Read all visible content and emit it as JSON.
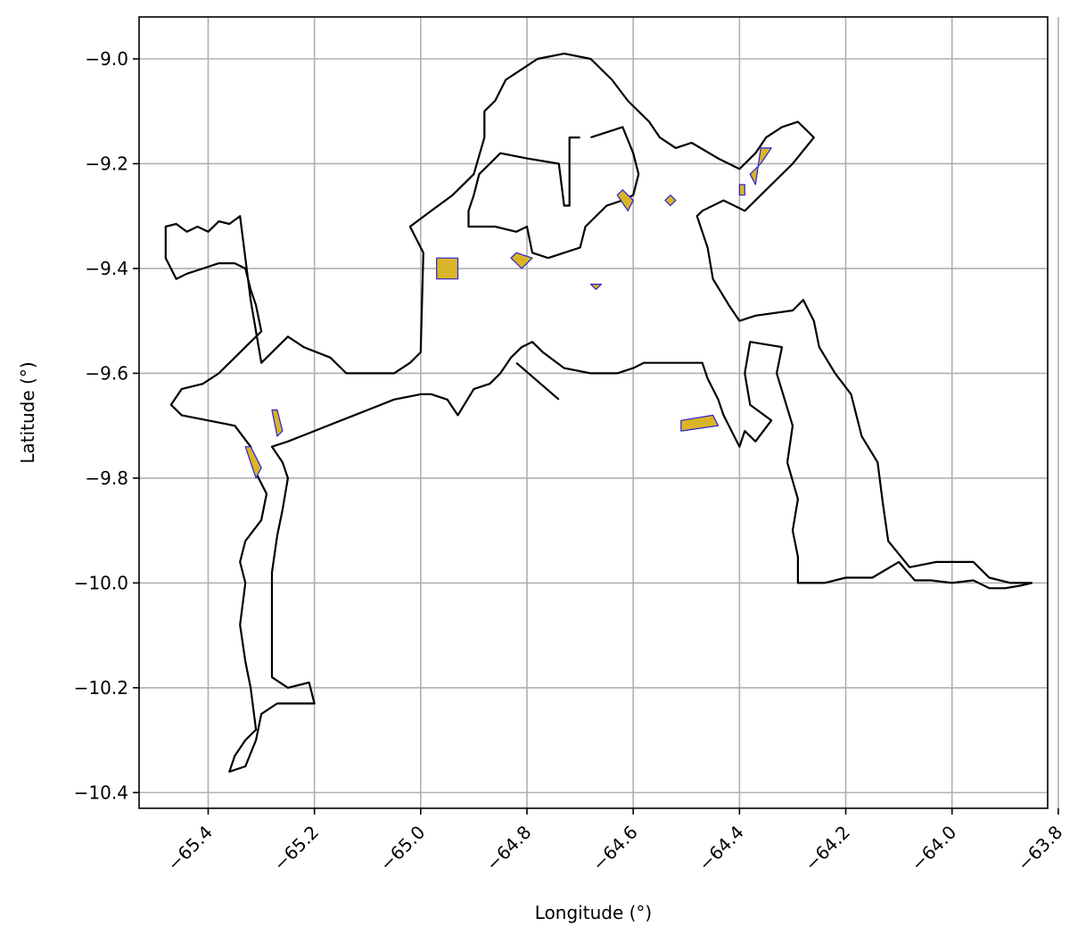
{
  "chart_data": {
    "type": "map",
    "xlabel": "Longitude (°)",
    "ylabel": "Latitude (°)",
    "xlim": [
      -65.53,
      -63.82
    ],
    "ylim": [
      -10.43,
      -8.92
    ],
    "xticks": [
      -65.4,
      -65.2,
      -65.0,
      -64.8,
      -64.6,
      -64.4,
      -64.2,
      -64.0,
      -63.8
    ],
    "xtick_labels": [
      "−65.4",
      "−65.2",
      "−65.0",
      "−64.8",
      "−64.6",
      "−64.4",
      "−64.2",
      "−64.0",
      "−63.8"
    ],
    "yticks": [
      -9.0,
      -9.2,
      -9.4,
      -9.6,
      -9.8,
      -10.0,
      -10.2,
      -10.4
    ],
    "ytick_labels": [
      "−9.0",
      "−9.2",
      "−9.4",
      "−9.6",
      "−9.8",
      "−10.0",
      "−10.2",
      "−10.4"
    ],
    "grid": true,
    "boundary_color": "#000000",
    "feature_fill": "#d9b526",
    "feature_edge": "#2a1fd6",
    "boundary": [
      [
        -65.48,
        -9.32
      ],
      [
        -65.46,
        -9.315
      ],
      [
        -65.44,
        -9.33
      ],
      [
        -65.42,
        -9.32
      ],
      [
        -65.4,
        -9.33
      ],
      [
        -65.38,
        -9.31
      ],
      [
        -65.36,
        -9.315
      ],
      [
        -65.34,
        -9.3
      ],
      [
        -65.32,
        -9.46
      ],
      [
        -65.3,
        -9.58
      ],
      [
        -65.25,
        -9.53
      ],
      [
        -65.22,
        -9.55
      ],
      [
        -65.17,
        -9.57
      ],
      [
        -65.14,
        -9.6
      ],
      [
        -65.1,
        -9.6
      ],
      [
        -65.05,
        -9.6
      ],
      [
        -65.02,
        -9.58
      ],
      [
        -65.0,
        -9.56
      ],
      [
        -64.995,
        -9.37
      ],
      [
        -65.02,
        -9.32
      ],
      [
        -64.98,
        -9.29
      ],
      [
        -64.94,
        -9.26
      ],
      [
        -64.9,
        -9.22
      ],
      [
        -64.88,
        -9.15
      ],
      [
        -64.88,
        -9.1
      ],
      [
        -64.86,
        -9.08
      ],
      [
        -64.84,
        -9.04
      ],
      [
        -64.81,
        -9.02
      ],
      [
        -64.78,
        -9.0
      ],
      [
        -64.73,
        -8.99
      ],
      [
        -64.68,
        -9.0
      ],
      [
        -64.64,
        -9.04
      ],
      [
        -64.61,
        -9.08
      ],
      [
        -64.57,
        -9.12
      ],
      [
        -64.55,
        -9.15
      ],
      [
        -64.52,
        -9.17
      ],
      [
        -64.49,
        -9.16
      ],
      [
        -64.44,
        -9.19
      ],
      [
        -64.4,
        -9.21
      ],
      [
        -64.37,
        -9.18
      ],
      [
        -64.35,
        -9.15
      ],
      [
        -64.32,
        -9.13
      ],
      [
        -64.29,
        -9.12
      ],
      [
        -64.26,
        -9.15
      ],
      [
        -64.3,
        -9.2
      ],
      [
        -64.33,
        -9.23
      ],
      [
        -64.36,
        -9.26
      ],
      [
        -64.38,
        -9.28
      ],
      [
        -64.39,
        -9.29
      ],
      [
        -64.43,
        -9.27
      ],
      [
        -64.47,
        -9.29
      ],
      [
        -64.48,
        -9.3
      ],
      [
        -64.46,
        -9.36
      ],
      [
        -64.45,
        -9.42
      ],
      [
        -64.42,
        -9.47
      ],
      [
        -64.4,
        -9.5
      ],
      [
        -64.37,
        -9.49
      ],
      [
        -64.3,
        -9.48
      ],
      [
        -64.28,
        -9.46
      ],
      [
        -64.26,
        -9.5
      ],
      [
        -64.25,
        -9.55
      ],
      [
        -64.22,
        -9.6
      ],
      [
        -64.19,
        -9.64
      ],
      [
        -64.17,
        -9.72
      ],
      [
        -64.14,
        -9.77
      ],
      [
        -64.13,
        -9.85
      ],
      [
        -64.12,
        -9.92
      ],
      [
        -64.08,
        -9.97
      ],
      [
        -64.03,
        -9.96
      ],
      [
        -63.96,
        -9.96
      ],
      [
        -63.93,
        -9.99
      ],
      [
        -63.89,
        -10.0
      ],
      [
        -63.85,
        -10.0
      ],
      [
        -63.87,
        -10.005
      ],
      [
        -63.9,
        -10.01
      ],
      [
        -63.93,
        -10.01
      ],
      [
        -63.96,
        -9.995
      ],
      [
        -64.0,
        -10.0
      ],
      [
        -64.04,
        -9.995
      ],
      [
        -64.07,
        -9.995
      ],
      [
        -64.1,
        -9.96
      ],
      [
        -64.15,
        -9.99
      ],
      [
        -64.2,
        -9.99
      ],
      [
        -64.24,
        -10.0
      ],
      [
        -64.29,
        -10.0
      ],
      [
        -64.29,
        -9.95
      ],
      [
        -64.3,
        -9.9
      ],
      [
        -64.29,
        -9.84
      ],
      [
        -64.31,
        -9.77
      ],
      [
        -64.3,
        -9.7
      ],
      [
        -64.33,
        -9.6
      ],
      [
        -64.32,
        -9.55
      ],
      [
        -64.38,
        -9.54
      ],
      [
        -64.39,
        -9.6
      ],
      [
        -64.38,
        -9.66
      ],
      [
        -64.34,
        -9.69
      ],
      [
        -64.37,
        -9.73
      ],
      [
        -64.39,
        -9.71
      ],
      [
        -64.4,
        -9.74
      ],
      [
        -64.43,
        -9.68
      ],
      [
        -64.44,
        -9.65
      ],
      [
        -64.46,
        -9.61
      ],
      [
        -64.47,
        -9.58
      ],
      [
        -64.5,
        -9.58
      ],
      [
        -64.55,
        -9.58
      ],
      [
        -64.58,
        -9.58
      ],
      [
        -64.6,
        -9.59
      ],
      [
        -64.63,
        -9.6
      ],
      [
        -64.68,
        -9.6
      ],
      [
        -64.73,
        -9.59
      ],
      [
        -64.77,
        -9.56
      ],
      [
        -64.79,
        -9.54
      ],
      [
        -64.81,
        -9.55
      ],
      [
        -64.83,
        -9.57
      ],
      [
        -64.85,
        -9.6
      ],
      [
        -64.87,
        -9.62
      ],
      [
        -64.9,
        -9.63
      ],
      [
        -64.93,
        -9.68
      ],
      [
        -64.95,
        -9.65
      ],
      [
        -64.98,
        -9.64
      ],
      [
        -65.0,
        -9.64
      ],
      [
        -65.05,
        -9.65
      ],
      [
        -65.1,
        -9.67
      ],
      [
        -65.15,
        -9.69
      ],
      [
        -65.2,
        -9.71
      ],
      [
        -65.25,
        -9.73
      ],
      [
        -65.28,
        -9.74
      ],
      [
        -65.26,
        -9.77
      ],
      [
        -65.25,
        -9.8
      ],
      [
        -65.26,
        -9.86
      ],
      [
        -65.27,
        -9.91
      ],
      [
        -65.28,
        -9.98
      ],
      [
        -65.28,
        -10.04
      ],
      [
        -65.28,
        -10.1
      ],
      [
        -65.28,
        -10.18
      ],
      [
        -65.25,
        -10.2
      ],
      [
        -65.21,
        -10.19
      ],
      [
        -65.2,
        -10.23
      ],
      [
        -65.27,
        -10.23
      ],
      [
        -65.3,
        -10.25
      ],
      [
        -65.31,
        -10.3
      ],
      [
        -65.33,
        -10.35
      ],
      [
        -65.36,
        -10.36
      ],
      [
        -65.35,
        -10.33
      ],
      [
        -65.33,
        -10.3
      ],
      [
        -65.31,
        -10.28
      ],
      [
        -65.32,
        -10.2
      ],
      [
        -65.33,
        -10.15
      ],
      [
        -65.34,
        -10.08
      ],
      [
        -65.33,
        -10.0
      ],
      [
        -65.34,
        -9.96
      ],
      [
        -65.33,
        -9.92
      ],
      [
        -65.3,
        -9.88
      ],
      [
        -65.29,
        -9.83
      ],
      [
        -65.31,
        -9.79
      ],
      [
        -65.32,
        -9.74
      ],
      [
        -65.35,
        -9.7
      ],
      [
        -65.4,
        -9.69
      ],
      [
        -65.45,
        -9.68
      ],
      [
        -65.47,
        -9.66
      ],
      [
        -65.45,
        -9.63
      ],
      [
        -65.41,
        -9.62
      ],
      [
        -65.38,
        -9.6
      ],
      [
        -65.35,
        -9.57
      ],
      [
        -65.32,
        -9.54
      ],
      [
        -65.3,
        -9.52
      ],
      [
        -65.31,
        -9.47
      ],
      [
        -65.32,
        -9.44
      ],
      [
        -65.33,
        -9.4
      ],
      [
        -65.35,
        -9.39
      ],
      [
        -65.38,
        -9.39
      ],
      [
        -65.41,
        -9.4
      ],
      [
        -65.44,
        -9.41
      ],
      [
        -65.46,
        -9.42
      ],
      [
        -65.48,
        -9.38
      ],
      [
        -65.48,
        -9.32
      ]
    ],
    "boundary_lines": [
      [
        [
          -64.82,
          -9.58
        ],
        [
          -64.74,
          -9.65
        ]
      ],
      [
        [
          -64.68,
          -9.15
        ],
        [
          -64.62,
          -9.13
        ],
        [
          -64.6,
          -9.18
        ],
        [
          -64.59,
          -9.22
        ],
        [
          -64.6,
          -9.26
        ],
        [
          -64.62,
          -9.27
        ],
        [
          -64.65,
          -9.28
        ],
        [
          -64.69,
          -9.32
        ],
        [
          -64.7,
          -9.36
        ],
        [
          -64.73,
          -9.37
        ],
        [
          -64.76,
          -9.38
        ],
        [
          -64.79,
          -9.37
        ],
        [
          -64.8,
          -9.32
        ],
        [
          -64.82,
          -9.33
        ],
        [
          -64.86,
          -9.32
        ],
        [
          -64.91,
          -9.32
        ],
        [
          -64.91,
          -9.29
        ],
        [
          -64.9,
          -9.26
        ],
        [
          -64.89,
          -9.22
        ],
        [
          -64.87,
          -9.2
        ],
        [
          -64.85,
          -9.18
        ],
        [
          -64.8,
          -9.19
        ],
        [
          -64.74,
          -9.2
        ],
        [
          -64.73,
          -9.28
        ],
        [
          -64.72,
          -9.28
        ],
        [
          -64.72,
          -9.15
        ],
        [
          -64.7,
          -9.15
        ]
      ]
    ],
    "features": [
      [
        [
          -64.97,
          -9.38
        ],
        [
          -64.93,
          -9.38
        ],
        [
          -64.93,
          -9.42
        ],
        [
          -64.97,
          -9.42
        ]
      ],
      [
        [
          -64.82,
          -9.37
        ],
        [
          -64.79,
          -9.38
        ],
        [
          -64.81,
          -9.4
        ],
        [
          -64.83,
          -9.38
        ]
      ],
      [
        [
          -64.67,
          -9.43
        ],
        [
          -64.66,
          -9.43
        ],
        [
          -64.67,
          -9.44
        ],
        [
          -64.68,
          -9.43
        ]
      ],
      [
        [
          -64.62,
          -9.25
        ],
        [
          -64.6,
          -9.27
        ],
        [
          -64.61,
          -9.29
        ],
        [
          -64.63,
          -9.26
        ]
      ],
      [
        [
          -64.53,
          -9.26
        ],
        [
          -64.52,
          -9.27
        ],
        [
          -64.53,
          -9.28
        ],
        [
          -64.54,
          -9.27
        ]
      ],
      [
        [
          -64.36,
          -9.17
        ],
        [
          -64.34,
          -9.17
        ],
        [
          -64.36,
          -9.2
        ],
        [
          -64.38,
          -9.22
        ],
        [
          -64.37,
          -9.24
        ]
      ],
      [
        [
          -64.4,
          -9.24
        ],
        [
          -64.39,
          -9.24
        ],
        [
          -64.39,
          -9.26
        ],
        [
          -64.4,
          -9.26
        ]
      ],
      [
        [
          -65.28,
          -9.67
        ],
        [
          -65.27,
          -9.67
        ],
        [
          -65.26,
          -9.71
        ],
        [
          -65.27,
          -9.72
        ]
      ],
      [
        [
          -65.33,
          -9.74
        ],
        [
          -65.32,
          -9.74
        ],
        [
          -65.3,
          -9.78
        ],
        [
          -65.31,
          -9.8
        ],
        [
          -65.32,
          -9.77
        ]
      ],
      [
        [
          -64.51,
          -9.69
        ],
        [
          -64.45,
          -9.68
        ],
        [
          -64.44,
          -9.7
        ],
        [
          -64.51,
          -9.71
        ]
      ]
    ]
  }
}
